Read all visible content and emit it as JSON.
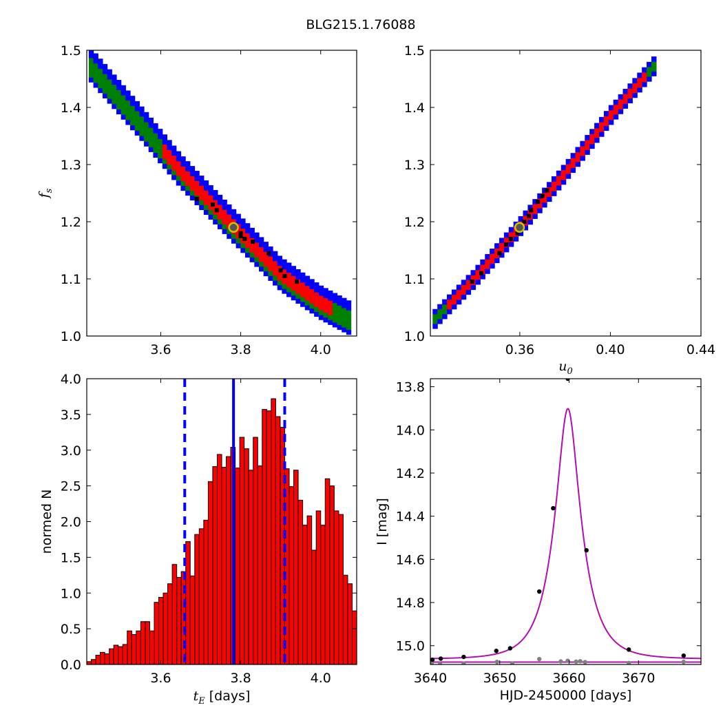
{
  "figure_title": "BLG215.1.76088",
  "colors": {
    "outer": "#0000ff",
    "mid": "#008000",
    "inner": "#ff0000",
    "sample": "#000000",
    "best_fill": "#555555",
    "best_ring": "#d4c100",
    "hist_bar": "#ff0000",
    "hist_line": "#0000ff",
    "model": "#b40cb0",
    "obs_main": "#000000",
    "obs_flat": "#808080"
  },
  "chart_data": [
    {
      "id": "tE_vs_fs",
      "type": "heatmap",
      "xlabel": "",
      "ylabel": "f_s",
      "xlim": [
        3.415,
        4.09
      ],
      "ylim": [
        1.0,
        1.5
      ],
      "xticks": [
        "3.6",
        "3.8",
        "4.0"
      ],
      "xtick_values": [
        3.6,
        3.8,
        4.0
      ],
      "yticks": [
        "1.0",
        "1.1",
        "1.2",
        "1.3",
        "1.4",
        "1.5"
      ],
      "ytick_values": [
        1.0,
        1.1,
        1.2,
        1.3,
        1.4,
        1.5
      ],
      "band": {
        "path": [
          [
            3.42,
            1.475
          ],
          [
            3.55,
            1.37
          ],
          [
            3.65,
            1.285
          ],
          [
            3.78,
            1.19
          ],
          [
            3.9,
            1.105
          ],
          [
            4.0,
            1.055
          ],
          [
            4.08,
            1.025
          ]
        ],
        "outer_halfwidth": 0.026,
        "mid_halfwidth": 0.02,
        "inner_halfwidth": 0.013,
        "inner_range": [
          3.6,
          4.02
        ],
        "grid_dx": 0.0115,
        "grid_dy": 0.0085
      },
      "samples": [
        [
          3.69,
          1.24
        ],
        [
          3.73,
          1.23
        ],
        [
          3.74,
          1.22
        ],
        [
          3.8,
          1.18
        ],
        [
          3.8,
          1.175
        ],
        [
          3.81,
          1.17
        ],
        [
          3.83,
          1.165
        ],
        [
          3.87,
          1.145
        ],
        [
          3.9,
          1.115
        ],
        [
          3.91,
          1.105
        ],
        [
          3.94,
          1.095
        ]
      ],
      "best_fit": [
        3.782,
        1.19
      ]
    },
    {
      "id": "u0_vs_fs",
      "type": "heatmap",
      "xlabel": "u_0",
      "ylabel": "",
      "xlim": [
        0.3205,
        0.44
      ],
      "ylim": [
        1.0,
        1.5
      ],
      "xticks": [
        "0.36",
        "0.40",
        "0.44"
      ],
      "xtick_values": [
        0.36,
        0.4,
        0.44
      ],
      "yticks": [
        "1.0",
        "1.1",
        "1.2",
        "1.3",
        "1.4",
        "1.5"
      ],
      "ytick_values": [
        1.0,
        1.1,
        1.2,
        1.3,
        1.4,
        1.5
      ],
      "band": {
        "path": [
          [
            0.3215,
            1.025
          ],
          [
            0.34,
            1.1
          ],
          [
            0.36,
            1.19
          ],
          [
            0.38,
            1.285
          ],
          [
            0.4,
            1.385
          ],
          [
            0.42,
            1.475
          ]
        ],
        "outer_halfwidth": 0.016,
        "mid_halfwidth": 0.0115,
        "inner_halfwidth": 0.0065,
        "inner_range": [
          0.327,
          0.414
        ],
        "grid_dx": 0.0021,
        "grid_dy": 0.0085
      },
      "samples": [
        [
          0.339,
          1.095
        ],
        [
          0.343,
          1.11
        ],
        [
          0.351,
          1.145
        ],
        [
          0.354,
          1.16
        ],
        [
          0.356,
          1.17
        ],
        [
          0.359,
          1.18
        ],
        [
          0.362,
          1.2
        ],
        [
          0.364,
          1.21
        ],
        [
          0.365,
          1.22
        ],
        [
          0.368,
          1.235
        ],
        [
          0.37,
          1.245
        ],
        [
          0.372,
          1.255
        ]
      ],
      "best_fit": [
        0.3599,
        1.19
      ]
    },
    {
      "id": "tE_histogram",
      "type": "bar",
      "xlabel": "t_E  [days]",
      "ylabel": "normed N",
      "xlim": [
        3.415,
        4.09
      ],
      "ylim": [
        0.0,
        4.0
      ],
      "xticks": [
        "3.6",
        "3.8",
        "4.0"
      ],
      "xtick_values": [
        3.6,
        3.8,
        4.0
      ],
      "yticks": [
        "0.0",
        "0.5",
        "1.0",
        "1.5",
        "2.0",
        "2.5",
        "3.0",
        "3.5",
        "4.0"
      ],
      "ytick_values": [
        0.0,
        0.5,
        1.0,
        1.5,
        2.0,
        2.5,
        3.0,
        3.5,
        4.0
      ],
      "bin_start": 3.415,
      "bin_width": 0.01125,
      "values": [
        0.04,
        0.07,
        0.13,
        0.17,
        0.15,
        0.22,
        0.27,
        0.25,
        0.28,
        0.47,
        0.42,
        0.47,
        0.6,
        0.6,
        0.47,
        0.87,
        0.94,
        1.0,
        1.13,
        1.4,
        1.22,
        1.3,
        1.72,
        1.24,
        1.82,
        1.9,
        2.02,
        2.56,
        2.77,
        2.94,
        2.76,
        2.91,
        3.04,
        2.75,
        3.18,
        3.02,
        2.72,
        3.18,
        2.78,
        3.57,
        3.55,
        3.72,
        3.47,
        3.32,
        2.74,
        2.49,
        2.72,
        2.3,
        1.95,
        2.08,
        1.6,
        2.15,
        1.95,
        2.6,
        2.5,
        2.15,
        2.1,
        1.25,
        1.13,
        0.75,
        0.5,
        0.32,
        0.22,
        0.12,
        0.07,
        0.04
      ],
      "vlines": [
        {
          "x": 3.782,
          "style": "solid"
        },
        {
          "x": 3.66,
          "style": "dashed"
        },
        {
          "x": 3.91,
          "style": "dashed"
        }
      ]
    },
    {
      "id": "light_curve",
      "type": "line",
      "xlabel": "HJD-2450000 [days]",
      "ylabel": "I [mag]",
      "xlim": [
        3640,
        3679
      ],
      "ylim": [
        15.087,
        13.763
      ],
      "y_inverted": true,
      "xticks": [
        "3640",
        "3650",
        "3660",
        "3670"
      ],
      "xtick_values": [
        3640,
        3650,
        3660,
        3670
      ],
      "yticks": [
        "13.8",
        "14.0",
        "14.2",
        "14.4",
        "14.6",
        "14.8",
        "15.0"
      ],
      "ytick_values": [
        13.8,
        14.0,
        14.2,
        14.4,
        14.6,
        14.8,
        15.0
      ],
      "model": {
        "t0": 3659.82,
        "u0": 0.36,
        "tE": 3.78,
        "baseline": 15.062
      },
      "flat_model_mag": 15.076,
      "obs_main": [
        [
          3640.3,
          15.065
        ],
        [
          3641.5,
          15.06
        ],
        [
          3644.8,
          15.052
        ],
        [
          3649.5,
          15.024
        ],
        [
          3651.5,
          15.012
        ],
        [
          3655.7,
          14.749
        ],
        [
          3657.7,
          14.363
        ],
        [
          3659.8,
          13.763
        ],
        [
          3662.5,
          14.558
        ],
        [
          3668.6,
          15.018
        ],
        [
          3676.5,
          15.046
        ]
      ],
      "obs_flat": [
        [
          3640.2,
          15.08
        ],
        [
          3641.4,
          15.085
        ],
        [
          3644.8,
          15.083
        ],
        [
          3649.6,
          15.075
        ],
        [
          3651.8,
          15.082
        ],
        [
          3655.7,
          15.062
        ],
        [
          3658.8,
          15.073
        ],
        [
          3659.8,
          15.07
        ],
        [
          3661.0,
          15.074
        ],
        [
          3661.6,
          15.072
        ],
        [
          3662.3,
          15.076
        ],
        [
          3668.6,
          15.08
        ],
        [
          3676.5,
          15.075
        ]
      ]
    }
  ]
}
